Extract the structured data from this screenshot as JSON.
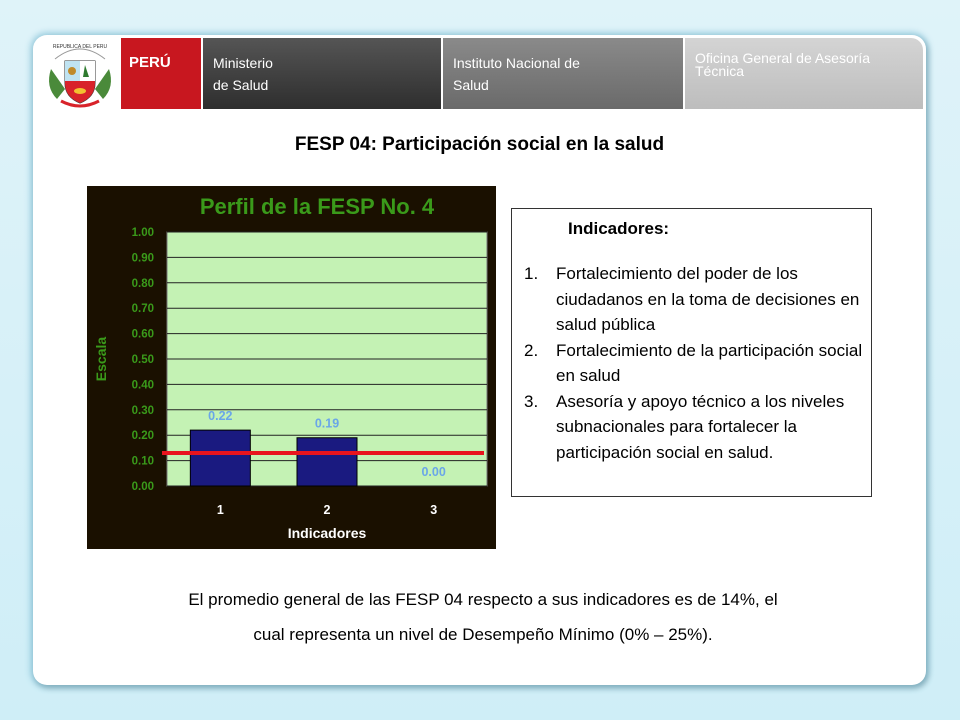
{
  "banner": {
    "country": "PERÚ",
    "ministry": [
      "Ministerio",
      "de Salud"
    ],
    "institute": [
      "Instituto Nacional de",
      "Salud"
    ],
    "office": [
      "Oficina General de Asesoría",
      "Técnica"
    ],
    "crest_text": "REPUBLICA DEL PERU"
  },
  "slide_title": "FESP 04: Participación social en la salud",
  "chart_data": {
    "type": "bar",
    "title": "Perfil de la FESP No. 4",
    "xlabel": "Indicadores",
    "ylabel": "Escala",
    "categories": [
      "1",
      "2",
      "3"
    ],
    "values": [
      0.22,
      0.19,
      0.0
    ],
    "value_labels": [
      "0.22",
      "0.19",
      "0.00"
    ],
    "yticks": [
      "0.00",
      "0.10",
      "0.20",
      "0.30",
      "0.40",
      "0.50",
      "0.60",
      "0.70",
      "0.80",
      "0.90",
      "1.00"
    ],
    "ylim": [
      0,
      1
    ],
    "reference_line": 0.13,
    "grid": true,
    "colors": {
      "background": "#1a1000",
      "plot_area": "#c4f2b4",
      "bar": "#1a1a80",
      "text": "#3a9a1a",
      "value_label": "#6aa6e8",
      "reference_line": "#e8141e"
    }
  },
  "indicators": {
    "heading": "Indicadores:",
    "items": [
      {
        "num": "1.",
        "text": "Fortalecimiento del poder de los ciudadanos en la toma de decisiones en salud pública"
      },
      {
        "num": "2.",
        "text": "Fortalecimiento de la participación social en salud"
      },
      {
        "num": "3.",
        "text": "Asesoría y apoyo técnico a los niveles subnacionales para fortalecer la participación social en salud."
      }
    ]
  },
  "summary": {
    "line1": "El promedio general de las FESP 04 respecto a sus indicadores es de 14%, el",
    "line2": "cual representa un nivel de Desempeño Mínimo (0% – 25%)."
  }
}
